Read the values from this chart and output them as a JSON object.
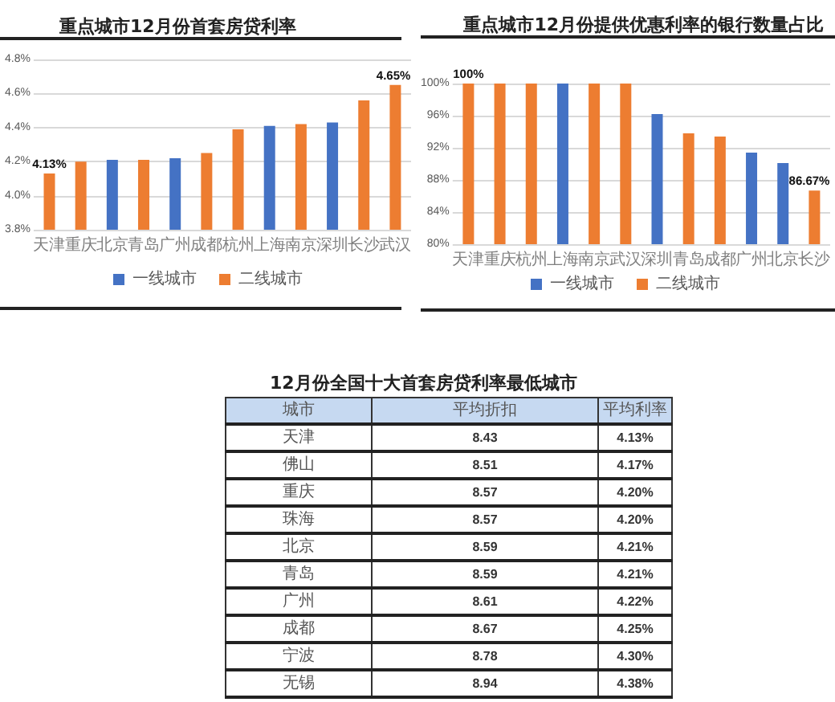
{
  "chart_data": [
    {
      "type": "bar",
      "title": "重点城市12月份首套房贷利率",
      "categories": [
        "天津",
        "重庆",
        "北京",
        "青岛",
        "广州",
        "成都",
        "杭州",
        "上海",
        "南京",
        "深圳",
        "长沙",
        "武汉"
      ],
      "series": [
        {
          "name": "一线城市",
          "color": "#4472c4",
          "values": [
            null,
            null,
            4.21,
            null,
            4.22,
            null,
            null,
            4.41,
            null,
            4.43,
            null,
            null
          ]
        },
        {
          "name": "二线城市",
          "color": "#ed7d31",
          "values": [
            4.13,
            4.2,
            null,
            4.21,
            null,
            4.25,
            4.39,
            null,
            4.42,
            null,
            4.56,
            4.65
          ],
          "value_labels": [
            "4.13%",
            null,
            null,
            null,
            null,
            null,
            null,
            null,
            null,
            null,
            null,
            "4.65%"
          ]
        }
      ],
      "ylim": [
        3.8,
        4.8
      ],
      "yticks": [
        {
          "value": 3.8,
          "label": "3.8%"
        },
        {
          "value": 4.0,
          "label": "4.0%"
        },
        {
          "value": 4.2,
          "label": "4.2%"
        },
        {
          "value": 4.4,
          "label": "4.4%"
        },
        {
          "value": 4.6,
          "label": "4.6%"
        },
        {
          "value": 4.8,
          "label": "4.8%"
        }
      ],
      "grid": "y",
      "legend": "bottom"
    },
    {
      "type": "bar",
      "title": "重点城市12月份提供优惠利率的银行数量占比",
      "categories": [
        "天津",
        "重庆",
        "杭州",
        "上海",
        "南京",
        "武汉",
        "深圳",
        "青岛",
        "成都",
        "广州",
        "北京",
        "长沙"
      ],
      "series": [
        {
          "name": "一线城市",
          "color": "#4472c4",
          "values": [
            null,
            null,
            null,
            100,
            null,
            null,
            96.2,
            null,
            null,
            91.4,
            90.1,
            null
          ]
        },
        {
          "name": "二线城市",
          "color": "#ed7d31",
          "values": [
            100,
            100,
            100,
            null,
            100,
            100,
            null,
            93.8,
            93.4,
            null,
            null,
            86.67
          ],
          "value_labels": [
            "100%",
            null,
            null,
            null,
            null,
            null,
            null,
            null,
            null,
            null,
            null,
            "86.67%"
          ]
        }
      ],
      "ylim": [
        80,
        100
      ],
      "yticks": [
        {
          "value": 80,
          "label": "80%"
        },
        {
          "value": 84,
          "label": "84%"
        },
        {
          "value": 88,
          "label": "88%"
        },
        {
          "value": 92,
          "label": "92%"
        },
        {
          "value": 96,
          "label": "96%"
        },
        {
          "value": 100,
          "label": "100%"
        }
      ],
      "grid": "y",
      "legend": "bottom"
    },
    {
      "type": "other",
      "title": "12月份全国十大首套房贷利率最低城市",
      "xlabel": "城市",
      "categories": [
        "天津",
        "佛山",
        "重庆",
        "珠海",
        "北京",
        "青岛",
        "广州",
        "成都",
        "宁波",
        "无锡"
      ],
      "series": [
        {
          "name": "平均折扣",
          "values": [
            8.43,
            8.51,
            8.57,
            8.57,
            8.59,
            8.59,
            8.61,
            8.67,
            8.78,
            8.94
          ],
          "value_labels": [
            "8.43",
            "8.51",
            "8.57",
            "8.57",
            "8.59",
            "8.59",
            "8.61",
            "8.67",
            "8.78",
            "8.94"
          ]
        },
        {
          "name": "平均利率",
          "values": [
            4.13,
            4.17,
            4.2,
            4.2,
            4.21,
            4.21,
            4.22,
            4.25,
            4.3,
            4.38
          ],
          "value_labels": [
            "4.13%",
            "4.17%",
            "4.20%",
            "4.20%",
            "4.21%",
            "4.21%",
            "4.22%",
            "4.25%",
            "4.30%",
            "4.38%"
          ]
        }
      ]
    }
  ]
}
